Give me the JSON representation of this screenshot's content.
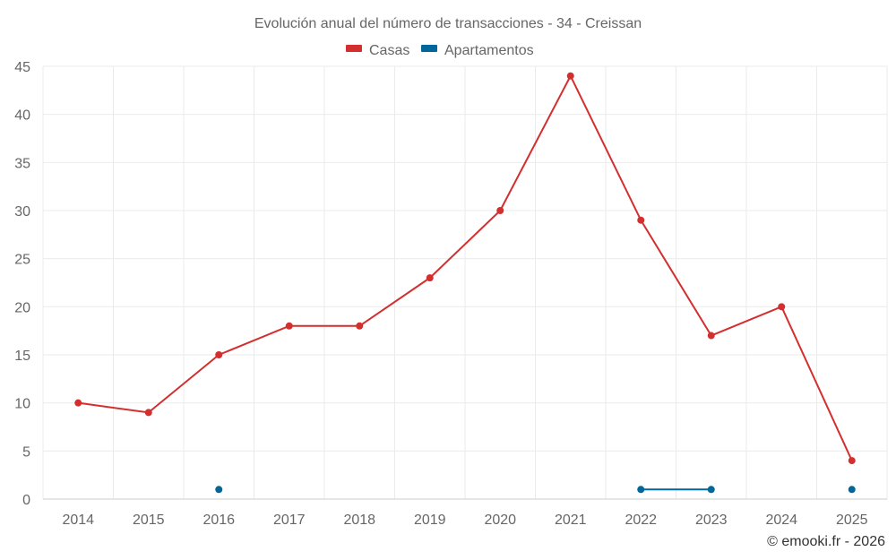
{
  "chart_data": {
    "type": "line",
    "title": "Evolución anual del número de transacciones - 34 - Creissan",
    "xlabel": "",
    "ylabel": "",
    "categories": [
      "2014",
      "2015",
      "2016",
      "2017",
      "2018",
      "2019",
      "2020",
      "2021",
      "2022",
      "2023",
      "2024",
      "2025"
    ],
    "ylim": [
      0,
      45
    ],
    "yticks": [
      0,
      5,
      10,
      15,
      20,
      25,
      30,
      35,
      40,
      45
    ],
    "grid": true,
    "legend_position": "top-center",
    "series": [
      {
        "name": "Casas",
        "color": "#d32f2f",
        "values": [
          10,
          9,
          15,
          18,
          18,
          23,
          30,
          44,
          29,
          17,
          20,
          4
        ]
      },
      {
        "name": "Apartamentos",
        "color": "#01679b",
        "values": [
          null,
          null,
          1,
          null,
          null,
          null,
          null,
          null,
          1,
          1,
          null,
          1
        ]
      }
    ]
  },
  "credit": "© emooki.fr - 2026"
}
